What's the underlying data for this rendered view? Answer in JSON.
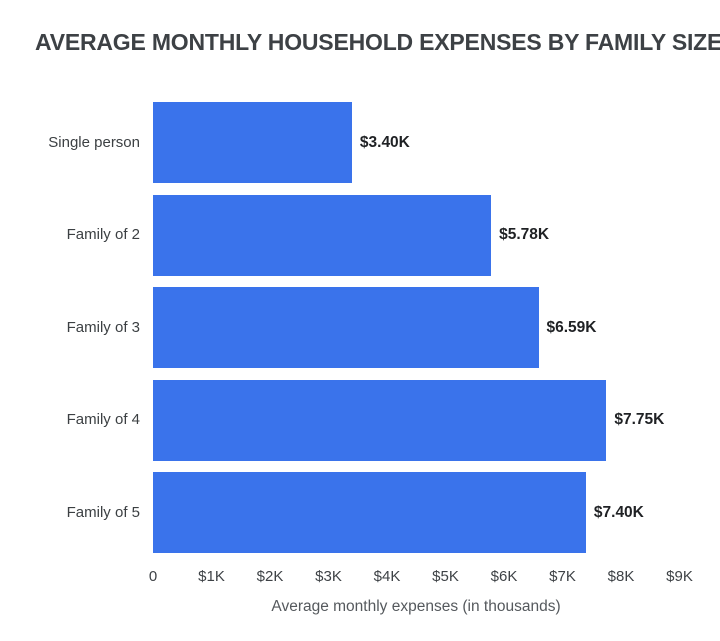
{
  "colors": {
    "bar": "#3a73eb",
    "title_text": "#3d4145",
    "category_text": "#3c4043",
    "value_text": "#1f2124",
    "axis_text": "#3e4246",
    "axis_title_text": "#55595d",
    "background": "#ffffff"
  },
  "chart_data": {
    "type": "bar",
    "orientation": "horizontal",
    "title": "AVERAGE MONTHLY HOUSEHOLD EXPENSES BY FAMILY SIZE",
    "categories": [
      "Single person",
      "Family of 2",
      "Family of 3",
      "Family of 4",
      "Family of 5"
    ],
    "values": [
      3.4,
      5.78,
      6.59,
      7.75,
      7.4
    ],
    "value_labels": [
      "$3.40K",
      "$5.78K",
      "$6.59K",
      "$7.75K",
      "$7.40K"
    ],
    "x_ticks": [
      "0",
      "$1K",
      "$2K",
      "$3K",
      "$4K",
      "$5K",
      "$6K",
      "$7K",
      "$8K",
      "$9K"
    ],
    "x_tick_values": [
      0,
      1,
      2,
      3,
      4,
      5,
      6,
      7,
      8,
      9
    ],
    "xlim": [
      0,
      9
    ],
    "xlabel": "Average monthly expenses (in thousands)",
    "ylabel": "",
    "grid": false,
    "legend": null
  }
}
